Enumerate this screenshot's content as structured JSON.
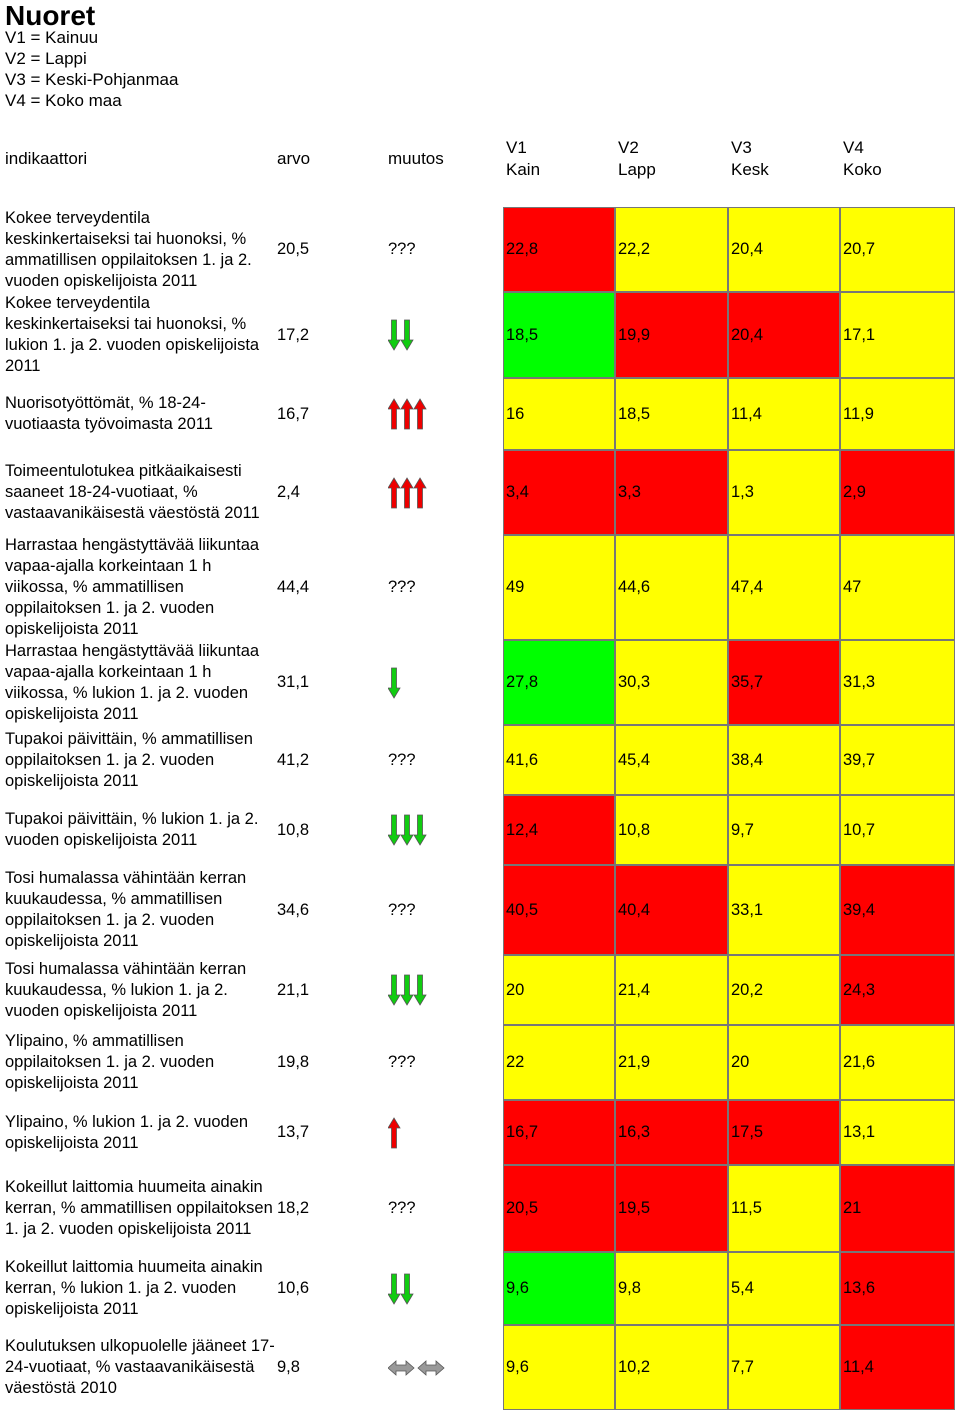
{
  "title": "Nuoret",
  "legend": [
    "V1 = Kainuu",
    "V2 = Lappi",
    "V3 = Keski-Pohjanmaa",
    "V4 = Koko maa"
  ],
  "header": {
    "indicator": "indikaattori",
    "arvo": "arvo",
    "muutos": "muutos",
    "columns": [
      {
        "code": "V1",
        "name": "Kain"
      },
      {
        "code": "V2",
        "name": "Lapp"
      },
      {
        "code": "V3",
        "name": "Kesk"
      },
      {
        "code": "V4",
        "name": "Koko"
      }
    ]
  },
  "rows": [
    {
      "indicator": "Kokee terveydentila keskinkertaiseksi tai huonoksi, % ammatillisen oppilaitoksen 1. ja 2. vuoden opiskelijoista 2011",
      "arvo": "20,5",
      "muutos": "???",
      "values": [
        "22,8",
        "22,2",
        "20,4",
        "20,7"
      ],
      "colors": [
        "red",
        "yellow",
        "yellow",
        "yellow"
      ]
    },
    {
      "indicator": "Kokee terveydentila keskinkertaiseksi tai huonoksi, % lukion 1. ja 2. vuoden opiskelijoista 2011",
      "arvo": "17,2",
      "trend": "down",
      "arrows": 2,
      "values": [
        "18,5",
        "19,9",
        "20,4",
        "17,1"
      ],
      "colors": [
        "green",
        "red",
        "red",
        "yellow"
      ]
    },
    {
      "indicator": "Nuorisotyöttömät, % 18-24-vuotiaasta työvoimasta 2011",
      "arvo": "16,7",
      "trend": "up",
      "arrows": 3,
      "values": [
        "16",
        "18,5",
        "11,4",
        "11,9"
      ],
      "colors": [
        "yellow",
        "yellow",
        "yellow",
        "yellow"
      ]
    },
    {
      "indicator": "Toimeentulotukea pitkäaikaisesti saaneet 18-24-vuotiaat, % vastaavanikäisestä väestöstä 2011",
      "arvo": "2,4",
      "trend": "up",
      "arrows": 3,
      "values": [
        "3,4",
        "3,3",
        "1,3",
        "2,9"
      ],
      "colors": [
        "red",
        "red",
        "yellow",
        "red"
      ]
    },
    {
      "indicator": "Harrastaa hengästyttävää liikuntaa vapaa-ajalla korkeintaan 1 h viikossa, % ammatillisen oppilaitoksen 1. ja 2. vuoden opiskelijoista 2011",
      "arvo": "44,4",
      "muutos": "???",
      "values": [
        "49",
        "44,6",
        "47,4",
        "47"
      ],
      "colors": [
        "yellow",
        "yellow",
        "yellow",
        "yellow"
      ]
    },
    {
      "indicator": "Harrastaa hengästyttävää liikuntaa vapaa-ajalla korkeintaan 1 h viikossa, % lukion 1. ja 2. vuoden opiskelijoista 2011",
      "arvo": "31,1",
      "trend": "down",
      "arrows": 1,
      "values": [
        "27,8",
        "30,3",
        "35,7",
        "31,3"
      ],
      "colors": [
        "green",
        "yellow",
        "red",
        "yellow"
      ]
    },
    {
      "indicator": "Tupakoi päivittäin, % ammatillisen oppilaitoksen 1. ja 2. vuoden opiskelijoista 2011",
      "arvo": "41,2",
      "muutos": "???",
      "values": [
        "41,6",
        "45,4",
        "38,4",
        "39,7"
      ],
      "colors": [
        "yellow",
        "yellow",
        "yellow",
        "yellow"
      ]
    },
    {
      "indicator": "Tupakoi päivittäin, % lukion 1. ja 2. vuoden opiskelijoista 2011",
      "arvo": "10,8",
      "trend": "down",
      "arrows": 3,
      "values": [
        "12,4",
        "10,8",
        "9,7",
        "10,7"
      ],
      "colors": [
        "red",
        "yellow",
        "yellow",
        "yellow"
      ]
    },
    {
      "indicator": "Tosi humalassa vähintään kerran kuukaudessa, % ammatillisen oppilaitoksen 1. ja 2. vuoden opiskelijoista 2011",
      "arvo": "34,6",
      "muutos": "???",
      "values": [
        "40,5",
        "40,4",
        "33,1",
        "39,4"
      ],
      "colors": [
        "red",
        "red",
        "yellow",
        "red"
      ]
    },
    {
      "indicator": "Tosi humalassa vähintään kerran kuukaudessa, % lukion 1. ja 2. vuoden opiskelijoista 2011",
      "arvo": "21,1",
      "trend": "down",
      "arrows": 3,
      "values": [
        "20",
        "21,4",
        "20,2",
        "24,3"
      ],
      "colors": [
        "yellow",
        "yellow",
        "yellow",
        "red"
      ]
    },
    {
      "indicator": "Ylipaino, % ammatillisen oppilaitoksen 1. ja 2. vuoden opiskelijoista 2011",
      "arvo": "19,8",
      "muutos": "???",
      "values": [
        "22",
        "21,9",
        "20",
        "21,6"
      ],
      "colors": [
        "yellow",
        "yellow",
        "yellow",
        "yellow"
      ]
    },
    {
      "indicator": "Ylipaino, % lukion 1. ja 2. vuoden opiskelijoista 2011",
      "arvo": "13,7",
      "trend": "up",
      "arrows": 1,
      "values": [
        "16,7",
        "16,3",
        "17,5",
        "13,1"
      ],
      "colors": [
        "red",
        "red",
        "red",
        "yellow"
      ]
    },
    {
      "indicator": "Kokeillut laittomia huumeita ainakin kerran, % ammatillisen oppilaitoksen 1. ja 2. vuoden opiskelijoista 2011",
      "arvo": "18,2",
      "muutos": "???",
      "values": [
        "20,5",
        "19,5",
        "11,5",
        "21"
      ],
      "colors": [
        "red",
        "red",
        "yellow",
        "red"
      ]
    },
    {
      "indicator": "Kokeillut laittomia huumeita ainakin kerran, % lukion 1. ja 2. vuoden opiskelijoista 2011",
      "arvo": "10,6",
      "trend": "down",
      "arrows": 2,
      "values": [
        "9,6",
        "9,8",
        "5,4",
        "13,6"
      ],
      "colors": [
        "green",
        "yellow",
        "yellow",
        "red"
      ]
    },
    {
      "indicator": "Koulutuksen ulkopuolelle jääneet 17-24-vuotiaat, % vastaavanikäisestä väestöstä 2010",
      "arvo": "9,8",
      "trend": "same",
      "arrows": 2,
      "values": [
        "9,6",
        "10,2",
        "7,7",
        "11,4"
      ],
      "colors": [
        "yellow",
        "yellow",
        "yellow",
        "red"
      ]
    }
  ]
}
